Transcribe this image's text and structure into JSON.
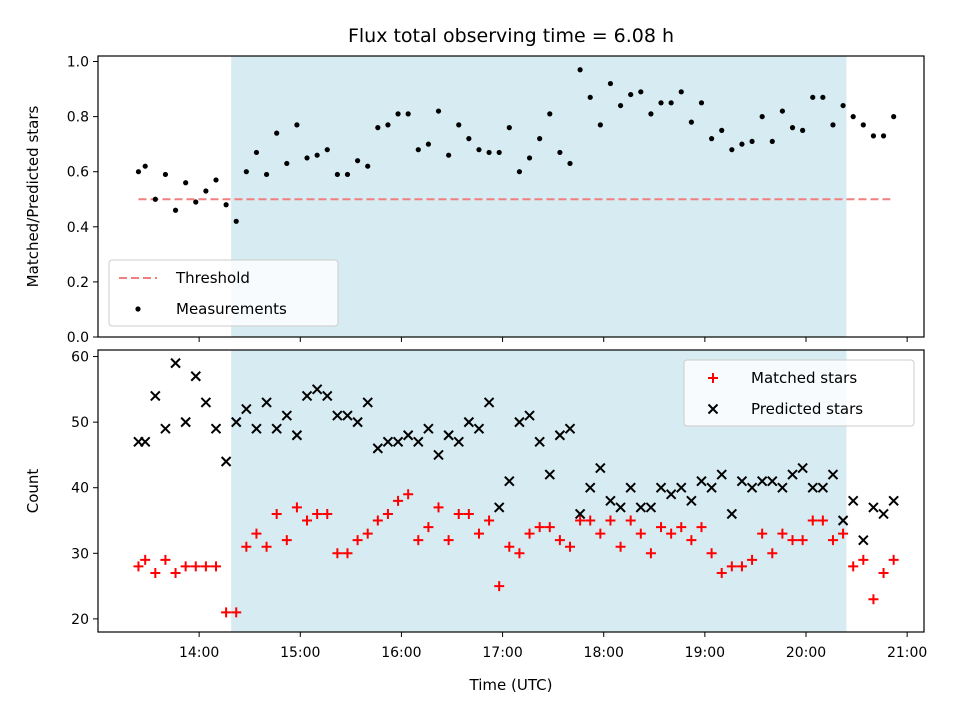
{
  "chart_data": [
    {
      "type": "scatter",
      "title": "Flux total observing time = 6.08 h",
      "xlabel": "",
      "ylabel": "Matched/Predicted stars",
      "xlim": [
        "13:00",
        "21:10"
      ],
      "ylim": [
        0,
        1.02
      ],
      "yticks": [
        0.0,
        0.2,
        0.4,
        0.6,
        0.8,
        1.0
      ],
      "legend_position": "lower-left",
      "shaded_interval": {
        "start": "14:19",
        "end": "20:24",
        "color": "#add8e6"
      },
      "threshold": {
        "name": "Threshold",
        "value": 0.5,
        "x_range": [
          "13:24",
          "20:50"
        ],
        "color": "#f08080",
        "style": "dashed"
      },
      "series": [
        {
          "name": "Measurements",
          "marker": "dot",
          "color": "#000000",
          "x": [
            "13:24",
            "13:28",
            "13:34",
            "13:40",
            "13:46",
            "13:52",
            "13:58",
            "14:04",
            "14:10",
            "14:16",
            "14:22",
            "14:28",
            "14:34",
            "14:40",
            "14:46",
            "14:52",
            "14:58",
            "15:04",
            "15:10",
            "15:16",
            "15:22",
            "15:28",
            "15:34",
            "15:40",
            "15:46",
            "15:52",
            "15:58",
            "16:04",
            "16:10",
            "16:16",
            "16:22",
            "16:28",
            "16:34",
            "16:40",
            "16:46",
            "16:52",
            "16:58",
            "17:04",
            "17:10",
            "17:16",
            "17:22",
            "17:28",
            "17:34",
            "17:40",
            "17:46",
            "17:52",
            "17:58",
            "18:04",
            "18:10",
            "18:16",
            "18:22",
            "18:28",
            "18:34",
            "18:40",
            "18:46",
            "18:52",
            "18:58",
            "19:04",
            "19:10",
            "19:16",
            "19:22",
            "19:28",
            "19:34",
            "19:40",
            "19:46",
            "19:52",
            "19:58",
            "20:04",
            "20:10",
            "20:16",
            "20:22",
            "20:28",
            "20:34",
            "20:40",
            "20:46",
            "20:52"
          ],
          "y": [
            0.6,
            0.62,
            0.5,
            0.59,
            0.46,
            0.56,
            0.49,
            0.53,
            0.57,
            0.48,
            0.42,
            0.6,
            0.67,
            0.59,
            0.74,
            0.63,
            0.77,
            0.65,
            0.66,
            0.68,
            0.59,
            0.59,
            0.64,
            0.62,
            0.76,
            0.77,
            0.81,
            0.81,
            0.68,
            0.7,
            0.82,
            0.66,
            0.77,
            0.72,
            0.68,
            0.67,
            0.67,
            0.76,
            0.6,
            0.65,
            0.72,
            0.81,
            0.67,
            0.63,
            0.97,
            0.87,
            0.77,
            0.92,
            0.84,
            0.88,
            0.89,
            0.81,
            0.85,
            0.85,
            0.89,
            0.78,
            0.85,
            0.72,
            0.75,
            0.68,
            0.7,
            0.71,
            0.8,
            0.71,
            0.82,
            0.76,
            0.75,
            0.87,
            0.87,
            0.77,
            0.84,
            0.8,
            0.77,
            0.73,
            0.73,
            0.8
          ]
        }
      ]
    },
    {
      "type": "scatter",
      "title": "",
      "xlabel": "Time (UTC)",
      "ylabel": "Count",
      "xlim": [
        "13:00",
        "21:10"
      ],
      "ylim": [
        18,
        61
      ],
      "yticks": [
        20,
        30,
        40,
        50,
        60
      ],
      "xticks": [
        "14:00",
        "15:00",
        "16:00",
        "17:00",
        "18:00",
        "19:00",
        "20:00",
        "21:00"
      ],
      "legend_position": "top-right",
      "shaded_interval": {
        "start": "14:19",
        "end": "20:24",
        "color": "#add8e6"
      },
      "series": [
        {
          "name": "Matched stars",
          "marker": "plus",
          "color": "#ff0000",
          "x": [
            "13:24",
            "13:28",
            "13:34",
            "13:40",
            "13:46",
            "13:52",
            "13:58",
            "14:04",
            "14:10",
            "14:16",
            "14:22",
            "14:28",
            "14:34",
            "14:40",
            "14:46",
            "14:52",
            "14:58",
            "15:04",
            "15:10",
            "15:16",
            "15:22",
            "15:28",
            "15:34",
            "15:40",
            "15:46",
            "15:52",
            "15:58",
            "16:04",
            "16:10",
            "16:16",
            "16:22",
            "16:28",
            "16:34",
            "16:40",
            "16:46",
            "16:52",
            "16:58",
            "17:04",
            "17:10",
            "17:16",
            "17:22",
            "17:28",
            "17:34",
            "17:40",
            "17:46",
            "17:52",
            "17:58",
            "18:04",
            "18:10",
            "18:16",
            "18:22",
            "18:28",
            "18:34",
            "18:40",
            "18:46",
            "18:52",
            "18:58",
            "19:04",
            "19:10",
            "19:16",
            "19:22",
            "19:28",
            "19:34",
            "19:40",
            "19:46",
            "19:52",
            "19:58",
            "20:04",
            "20:10",
            "20:16",
            "20:22",
            "20:28",
            "20:34",
            "20:40",
            "20:46",
            "20:52"
          ],
          "y": [
            28,
            29,
            27,
            29,
            27,
            28,
            28,
            28,
            28,
            21,
            21,
            31,
            33,
            31,
            36,
            32,
            37,
            35,
            36,
            36,
            30,
            30,
            32,
            33,
            35,
            36,
            38,
            39,
            32,
            34,
            37,
            32,
            36,
            36,
            33,
            35,
            25,
            31,
            30,
            33,
            34,
            34,
            32,
            31,
            35,
            35,
            33,
            35,
            31,
            35,
            33,
            30,
            34,
            33,
            34,
            32,
            34,
            30,
            27,
            28,
            28,
            29,
            33,
            30,
            33,
            32,
            32,
            35,
            35,
            32,
            33,
            28,
            29,
            23,
            27,
            29
          ]
        },
        {
          "name": "Predicted stars",
          "marker": "x",
          "color": "#000000",
          "x": [
            "13:24",
            "13:28",
            "13:34",
            "13:40",
            "13:46",
            "13:52",
            "13:58",
            "14:04",
            "14:10",
            "14:16",
            "14:22",
            "14:28",
            "14:34",
            "14:40",
            "14:46",
            "14:52",
            "14:58",
            "15:04",
            "15:10",
            "15:16",
            "15:22",
            "15:28",
            "15:34",
            "15:40",
            "15:46",
            "15:52",
            "15:58",
            "16:04",
            "16:10",
            "16:16",
            "16:22",
            "16:28",
            "16:34",
            "16:40",
            "16:46",
            "16:52",
            "16:58",
            "17:04",
            "17:10",
            "17:16",
            "17:22",
            "17:28",
            "17:34",
            "17:40",
            "17:46",
            "17:52",
            "17:58",
            "18:04",
            "18:10",
            "18:16",
            "18:22",
            "18:28",
            "18:34",
            "18:40",
            "18:46",
            "18:52",
            "18:58",
            "19:04",
            "19:10",
            "19:16",
            "19:22",
            "19:28",
            "19:34",
            "19:40",
            "19:46",
            "19:52",
            "19:58",
            "20:04",
            "20:10",
            "20:16",
            "20:22",
            "20:28",
            "20:34",
            "20:40",
            "20:46",
            "20:52"
          ],
          "y": [
            47,
            47,
            54,
            49,
            59,
            50,
            57,
            53,
            49,
            44,
            50,
            52,
            49,
            53,
            49,
            51,
            48,
            54,
            55,
            54,
            51,
            51,
            50,
            53,
            46,
            47,
            47,
            48,
            47,
            49,
            45,
            48,
            47,
            50,
            49,
            53,
            37,
            41,
            50,
            51,
            47,
            42,
            48,
            49,
            36,
            40,
            43,
            38,
            37,
            40,
            37,
            37,
            40,
            39,
            40,
            38,
            41,
            40,
            42,
            36,
            41,
            40,
            41,
            41,
            40,
            42,
            43,
            40,
            40,
            42,
            35,
            38,
            32,
            37,
            36,
            38
          ]
        }
      ]
    }
  ]
}
